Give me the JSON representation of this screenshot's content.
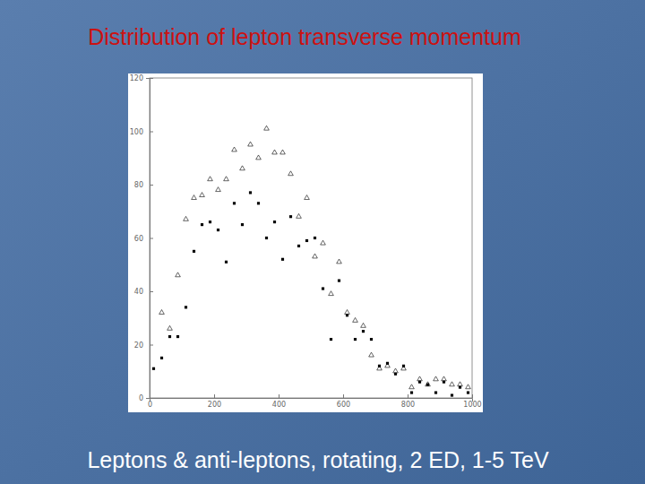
{
  "chart_data": {
    "type": "scatter",
    "title": "Distribution of lepton transverse momentum",
    "subtitle": "Leptons & anti-leptons, rotating, 2 ED, 1-5 TeV",
    "x": [
      12.5,
      37.5,
      62.5,
      87.5,
      112.5,
      137.5,
      162.5,
      187.5,
      212.5,
      237.5,
      262.5,
      287.5,
      312.5,
      337.5,
      362.5,
      387.5,
      412.5,
      437.5,
      462.5,
      487.5,
      512.5,
      537.5,
      562.5,
      587.5,
      612.5,
      637.5,
      662.5,
      687.5,
      712.5,
      737.5,
      762.5,
      787.5,
      812.5,
      837.5,
      862.5,
      887.5,
      912.5,
      937.5,
      962.5,
      987.5
    ],
    "series": [
      {
        "color": "#000000",
        "marker": "triangle-open",
        "values": [
          null,
          32,
          26,
          46,
          67,
          75,
          76,
          82,
          78,
          82,
          93,
          86,
          95,
          90,
          101,
          92,
          92,
          84,
          68,
          75,
          53,
          58,
          39,
          51,
          32,
          29,
          27,
          16,
          11,
          12,
          10,
          11,
          4,
          7,
          5,
          7,
          7,
          5,
          5,
          4
        ]
      },
      {
        "color": "#000000",
        "marker": "square",
        "values": [
          11,
          15,
          23,
          23,
          34,
          55,
          65,
          66,
          63,
          51,
          73,
          65,
          77,
          73,
          60,
          66,
          52,
          68,
          57,
          59,
          60,
          41,
          22,
          44,
          31,
          22,
          25,
          22,
          12,
          13,
          9,
          12,
          2,
          6,
          5,
          2,
          6,
          1,
          4,
          2
        ]
      }
    ],
    "xlim": [
      0,
      1000
    ],
    "xticks": [
      0,
      200,
      400,
      600,
      800,
      1000
    ],
    "ylim": [
      0,
      120
    ],
    "yticks": [
      0,
      20,
      40,
      60,
      80,
      100,
      120
    ],
    "grid": false
  }
}
